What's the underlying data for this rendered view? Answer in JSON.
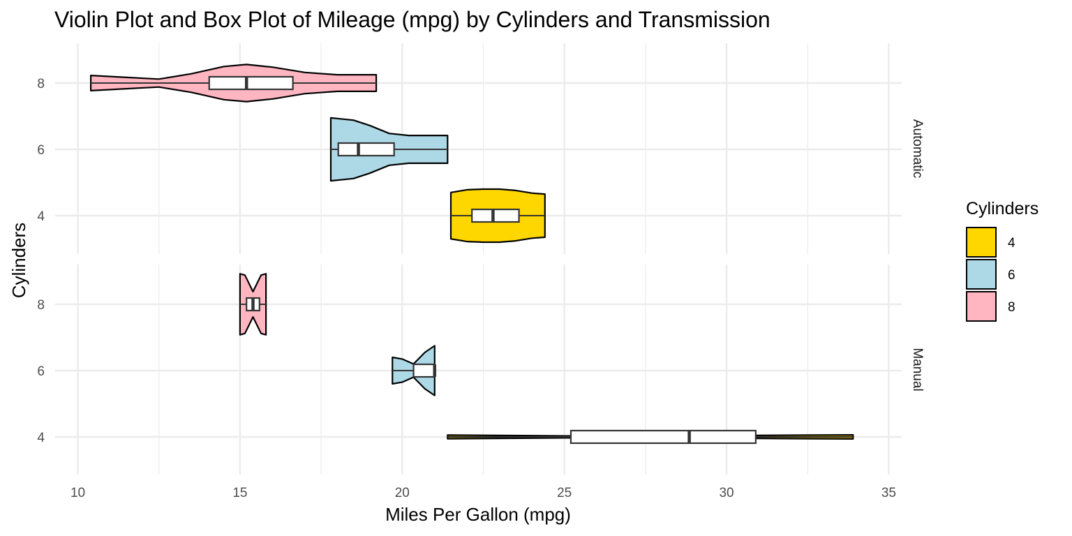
{
  "chart_data": {
    "type": "violin",
    "title": "Violin Plot and Box Plot of Mileage (mpg) by Cylinders and Transmission",
    "xlabel": "Miles Per Gallon (mpg)",
    "ylabel": "Cylinders",
    "xlim": [
      9.3,
      35.4
    ],
    "x_ticks": [
      10,
      15,
      20,
      25,
      30,
      35
    ],
    "y_categories": [
      "4",
      "6",
      "8"
    ],
    "grid": true,
    "facets": [
      "Automatic",
      "Manual"
    ],
    "legend": {
      "title": "Cylinders",
      "position": "right",
      "entries": [
        {
          "label": "4",
          "color": "#FFD700"
        },
        {
          "label": "6",
          "color": "#ADD8E6"
        },
        {
          "label": "8",
          "color": "#FFB6C1"
        }
      ]
    },
    "groups": [
      {
        "facet": "Automatic",
        "cyl": "8",
        "color": "#FFB6C1",
        "violin_range": [
          10.4,
          19.2
        ],
        "violin_profile": [
          [
            10.4,
            0.23
          ],
          [
            11.5,
            0.17
          ],
          [
            12.5,
            0.12
          ],
          [
            13.5,
            0.28
          ],
          [
            14.5,
            0.5
          ],
          [
            15.2,
            0.56
          ],
          [
            16,
            0.48
          ],
          [
            17,
            0.32
          ],
          [
            18,
            0.25
          ],
          [
            19.2,
            0.25
          ]
        ],
        "box": {
          "q1": 14.05,
          "median": 15.2,
          "q3": 16.63,
          "whisker_low": 10.4,
          "whisker_high": 19.2
        }
      },
      {
        "facet": "Automatic",
        "cyl": "6",
        "color": "#ADD8E6",
        "violin_range": [
          17.8,
          21.4
        ],
        "violin_profile": [
          [
            17.8,
            0.95
          ],
          [
            18.1,
            0.92
          ],
          [
            18.5,
            0.88
          ],
          [
            19,
            0.72
          ],
          [
            19.6,
            0.48
          ],
          [
            20.2,
            0.42
          ],
          [
            21,
            0.42
          ],
          [
            21.4,
            0.42
          ]
        ],
        "box": {
          "q1": 18.03,
          "median": 18.65,
          "q3": 19.75,
          "whisker_low": 17.8,
          "whisker_high": 21.4
        }
      },
      {
        "facet": "Automatic",
        "cyl": "4",
        "color": "#FFD700",
        "violin_range": [
          21.5,
          24.4
        ],
        "violin_profile": [
          [
            21.5,
            0.7
          ],
          [
            22,
            0.78
          ],
          [
            22.5,
            0.8
          ],
          [
            23,
            0.8
          ],
          [
            23.5,
            0.76
          ],
          [
            24,
            0.68
          ],
          [
            24.4,
            0.65
          ]
        ],
        "box": {
          "q1": 22.15,
          "median": 22.8,
          "q3": 23.6,
          "whisker_low": 21.5,
          "whisker_high": 24.4
        }
      },
      {
        "facet": "Manual",
        "cyl": "8",
        "color": "#FFB6C1",
        "violin_range": [
          15.0,
          15.8
        ],
        "violin_profile": [
          [
            15,
            0.92
          ],
          [
            15.15,
            0.88
          ],
          [
            15.4,
            0.38
          ],
          [
            15.65,
            0.88
          ],
          [
            15.8,
            0.92
          ]
        ],
        "box": {
          "q1": 15.2,
          "median": 15.4,
          "q3": 15.6,
          "whisker_low": 15.0,
          "whisker_high": 15.8
        }
      },
      {
        "facet": "Manual",
        "cyl": "6",
        "color": "#ADD8E6",
        "violin_range": [
          19.7,
          21.0
        ],
        "violin_profile": [
          [
            19.7,
            0.4
          ],
          [
            20,
            0.35
          ],
          [
            20.35,
            0.2
          ],
          [
            20.7,
            0.55
          ],
          [
            21,
            0.75
          ]
        ],
        "box": {
          "q1": 20.35,
          "median": 21.0,
          "q3": 21.0,
          "whisker_low": 19.7,
          "whisker_high": 21.0
        }
      },
      {
        "facet": "Manual",
        "cyl": "4",
        "color": "#FFD700",
        "violin_range": [
          21.4,
          33.9
        ],
        "violin_profile": [
          [
            21.4,
            0.055
          ],
          [
            25,
            0.03
          ],
          [
            30,
            0.04
          ],
          [
            33.9,
            0.06
          ]
        ],
        "box": {
          "q1": 25.2,
          "median": 28.85,
          "q3": 30.9,
          "whisker_low": 21.4,
          "whisker_high": 33.9
        }
      }
    ]
  }
}
